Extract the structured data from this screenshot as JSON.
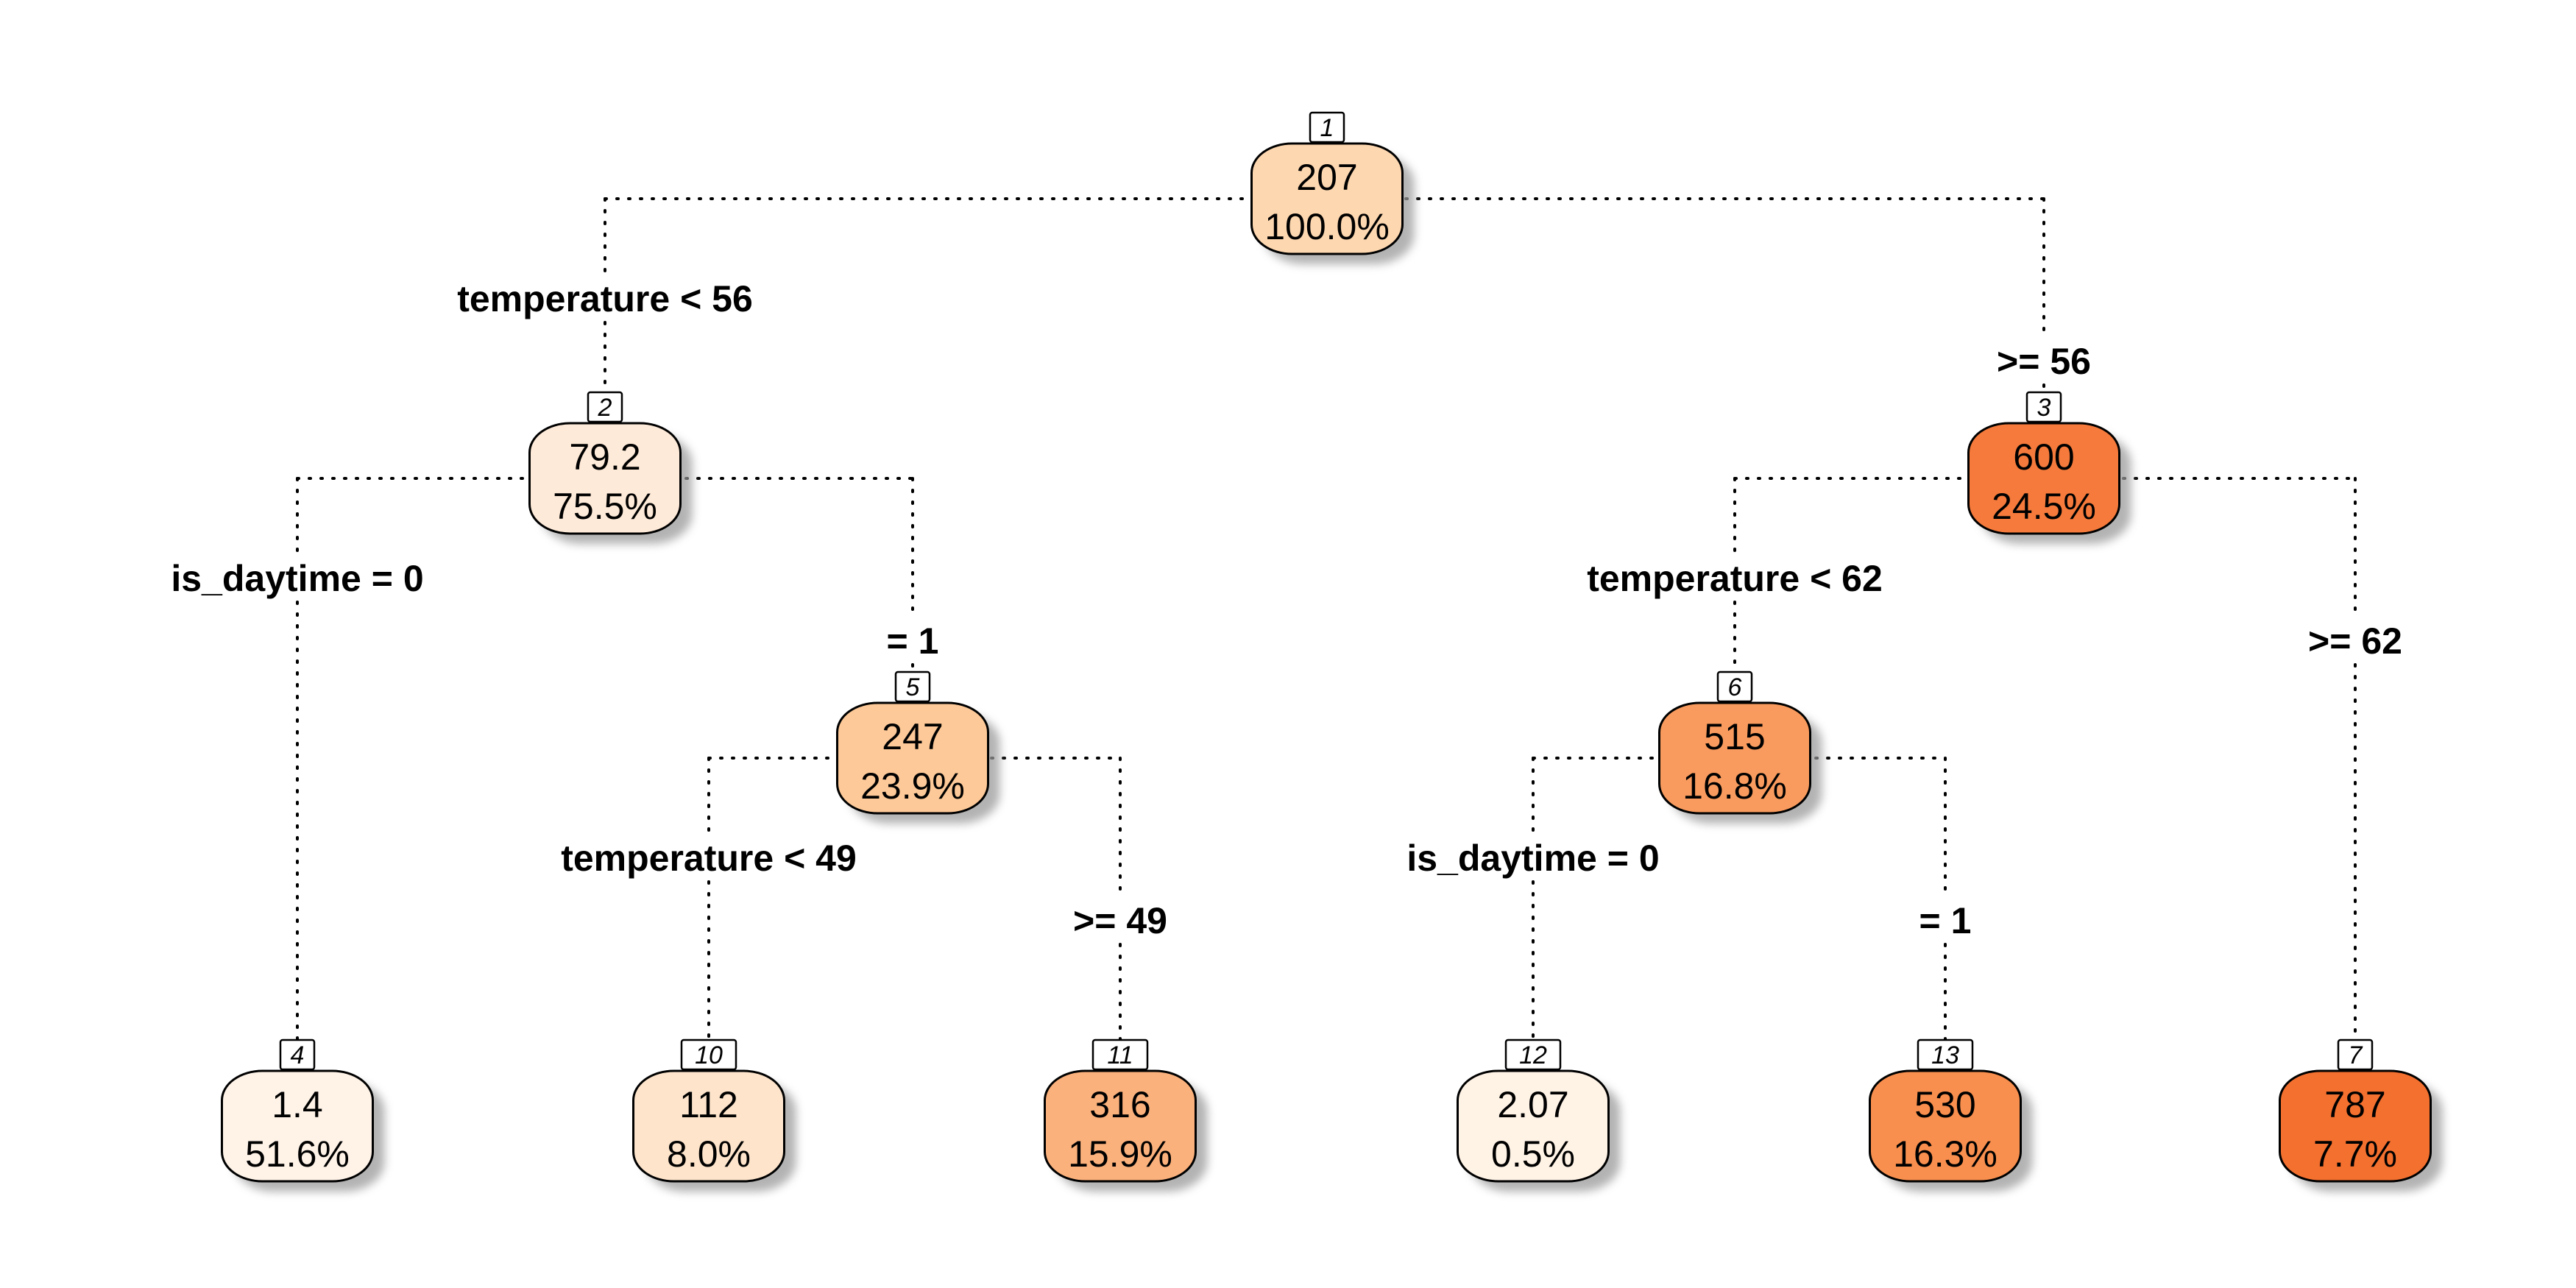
{
  "tree": {
    "nodes": [
      {
        "id": "1",
        "value": "207",
        "percent": "100.0%",
        "fill": "#fdd7b0"
      },
      {
        "id": "2",
        "value": "79.2",
        "percent": "75.5%",
        "fill": "#feead8"
      },
      {
        "id": "3",
        "value": "600",
        "percent": "24.5%",
        "fill": "#f57a3b"
      },
      {
        "id": "5",
        "value": "247",
        "percent": "23.9%",
        "fill": "#fdc998"
      },
      {
        "id": "6",
        "value": "515",
        "percent": "16.8%",
        "fill": "#f99b5e"
      },
      {
        "id": "4",
        "value": "1.4",
        "percent": "51.6%",
        "fill": "#fff3e8"
      },
      {
        "id": "10",
        "value": "112",
        "percent": "8.0%",
        "fill": "#fde4cb"
      },
      {
        "id": "11",
        "value": "316",
        "percent": "15.9%",
        "fill": "#fbb17c"
      },
      {
        "id": "12",
        "value": "2.07",
        "percent": "0.5%",
        "fill": "#fff3e6"
      },
      {
        "id": "13",
        "value": "530",
        "percent": "16.3%",
        "fill": "#f98f4e"
      },
      {
        "id": "7",
        "value": "787",
        "percent": "7.7%",
        "fill": "#f4702f"
      }
    ],
    "splits": [
      {
        "parent": "1",
        "left_label": "temperature < 56",
        "right_label": ">= 56"
      },
      {
        "parent": "2",
        "left_label": "is_daytime = 0",
        "right_label": "= 1"
      },
      {
        "parent": "3",
        "left_label": "temperature < 62",
        "right_label": ">= 62"
      },
      {
        "parent": "5",
        "left_label": "temperature < 49",
        "right_label": ">= 49"
      },
      {
        "parent": "6",
        "left_label": "is_daytime = 0",
        "right_label": "= 1"
      }
    ]
  }
}
